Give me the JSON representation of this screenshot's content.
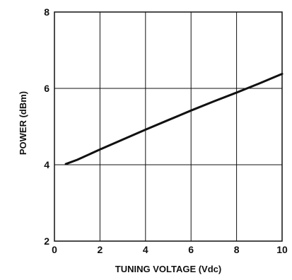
{
  "chart_data": {
    "type": "line",
    "title": "",
    "xlabel": "TUNING VOLTAGE (Vdc)",
    "ylabel": "POWER (dBm)",
    "xlim": [
      0,
      10
    ],
    "ylim": [
      2,
      8
    ],
    "xticks": [
      0,
      2,
      4,
      6,
      8,
      10
    ],
    "yticks": [
      2,
      4,
      6,
      8
    ],
    "grid": true,
    "series": [
      {
        "x": [
          0.5,
          1,
          2,
          3,
          4,
          5,
          6,
          7,
          8,
          9,
          10
        ],
        "y": [
          4.02,
          4.13,
          4.4,
          4.66,
          4.92,
          5.17,
          5.42,
          5.66,
          5.89,
          6.13,
          6.38
        ]
      }
    ]
  },
  "colors": {
    "line": "#111111",
    "axis": "#111111",
    "grid": "#111111",
    "background": "#ffffff"
  }
}
